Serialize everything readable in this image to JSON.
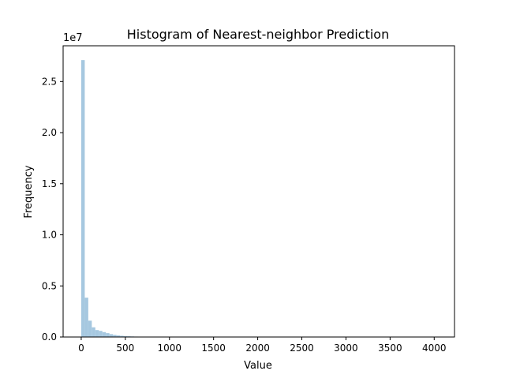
{
  "chart_data": {
    "type": "bar",
    "title": "Histogram of Nearest-neighbor Prediction",
    "xlabel": "Value",
    "ylabel": "Frequency",
    "y_offset_label": "1e7",
    "xlim": [
      -205,
      4230
    ],
    "ylim": [
      0,
      28500000
    ],
    "xticks": [
      0,
      500,
      1000,
      1500,
      2000,
      2500,
      3000,
      3500,
      4000
    ],
    "yticks": [
      0,
      5000000,
      10000000,
      15000000,
      20000000,
      25000000
    ],
    "ytick_labels": [
      "0.0",
      "0.5",
      "1.0",
      "1.5",
      "2.0",
      "2.5"
    ],
    "bar_color": "#a6c8e0",
    "bin_width": 40,
    "bin_starts": [
      0,
      40,
      80,
      120,
      160,
      200,
      240,
      280,
      320,
      360,
      400,
      440,
      480,
      520,
      560,
      600,
      640,
      680,
      720,
      760,
      800,
      840,
      880,
      920,
      960,
      1000,
      1040,
      1080,
      1120,
      1160,
      1200
    ],
    "values": [
      27100000,
      3850000,
      1600000,
      950000,
      680000,
      600000,
      480000,
      380000,
      280000,
      210000,
      160000,
      120000,
      90000,
      70000,
      55000,
      42000,
      32000,
      25000,
      20000,
      16000,
      13000,
      11000,
      9000,
      7500,
      6500,
      5500,
      4500,
      3800,
      3200,
      2800,
      2400
    ],
    "grid": false,
    "legend": "none"
  }
}
